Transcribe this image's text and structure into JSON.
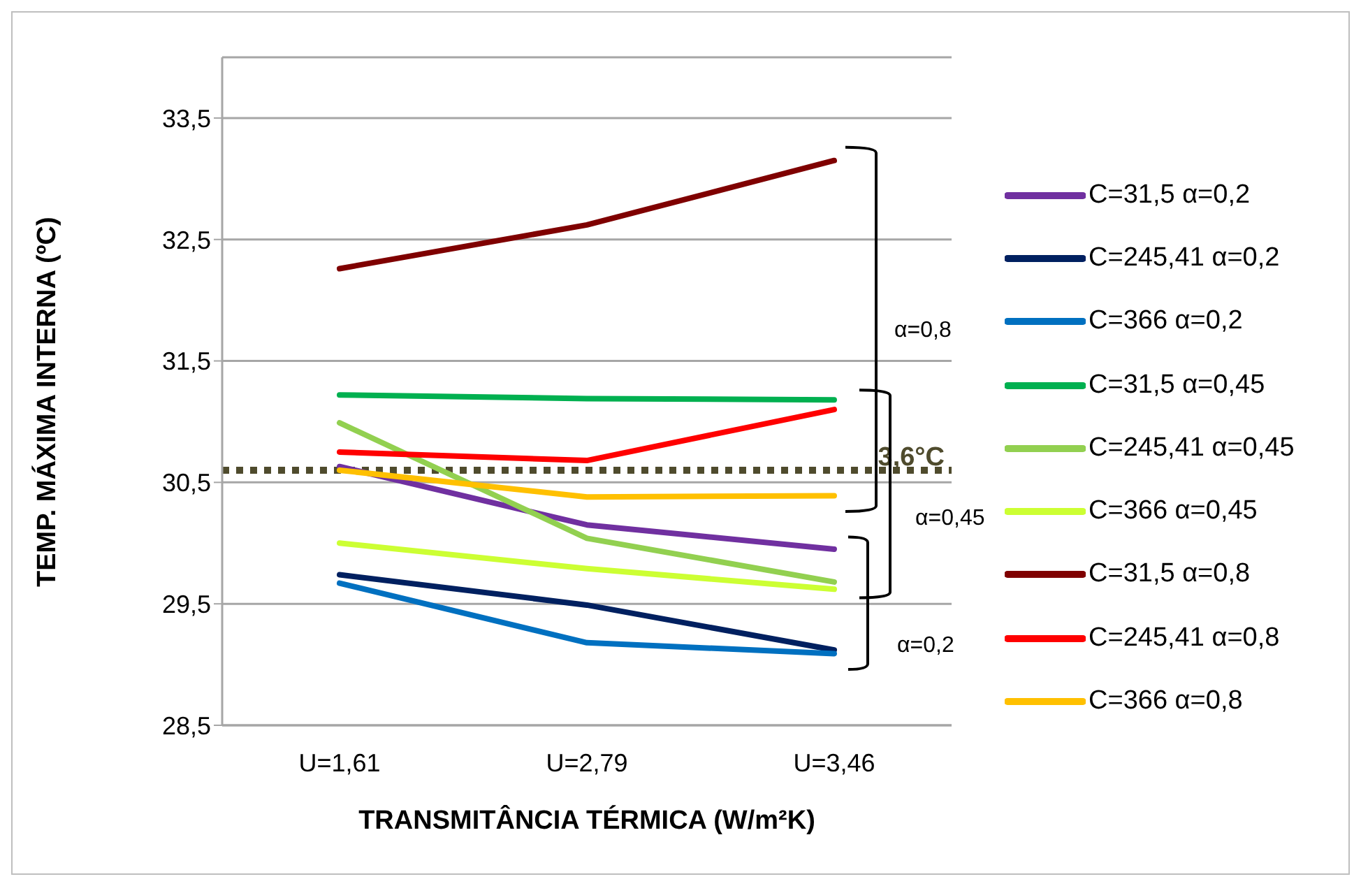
{
  "chart_data": {
    "type": "line",
    "xlabel": "TRANSMITÂNCIA TÉRMICA (W/m²K)",
    "ylabel": "TEMP. MÁXIMA INTERNA (ºC)",
    "categories": [
      "U=1,61",
      "U=2,79",
      "U=3,46"
    ],
    "ylim": [
      28.5,
      34
    ],
    "yticks": [
      {
        "value": 28.5,
        "label": "28,5"
      },
      {
        "value": 29.5,
        "label": "29,5"
      },
      {
        "value": 30.5,
        "label": "30,5"
      },
      {
        "value": 31.5,
        "label": "31,5"
      },
      {
        "value": 32.5,
        "label": "32,5"
      },
      {
        "value": 33.5,
        "label": "33,5"
      }
    ],
    "grid": "y",
    "legend": "right",
    "line_style": "solid",
    "series": [
      {
        "name": "C=31,5 α=0,2",
        "color": "#7030a0",
        "values": [
          30.63,
          30.15,
          29.95
        ]
      },
      {
        "name": "C=245,41 α=0,2",
        "color": "#002060",
        "values": [
          29.74,
          29.49,
          29.12
        ]
      },
      {
        "name": "C=366 α=0,2",
        "color": "#0070c0",
        "values": [
          29.67,
          29.18,
          29.09
        ]
      },
      {
        "name": "C=31,5 α=0,45",
        "color": "#00b050",
        "values": [
          31.22,
          31.19,
          31.18
        ]
      },
      {
        "name": "C=245,41 α=0,45",
        "color": "#92d050",
        "values": [
          30.99,
          30.04,
          29.68
        ]
      },
      {
        "name": "C=366 α=0,45",
        "color": "#ccff33",
        "values": [
          30.0,
          29.79,
          29.62
        ]
      },
      {
        "name": "C=31,5 α=0,8",
        "color": "#7f0000",
        "values": [
          32.26,
          32.62,
          33.15
        ]
      },
      {
        "name": "C=245,41 α=0,8",
        "color": "#ff0000",
        "values": [
          30.75,
          30.68,
          31.1
        ]
      },
      {
        "name": "C=366 α=0,8",
        "color": "#ffc000",
        "values": [
          30.6,
          30.38,
          30.39
        ]
      }
    ],
    "ref_lines": [
      {
        "axis": "y",
        "value": 30.6,
        "label": "3,6°C",
        "color": "#4f4b2d",
        "line_style": "dotted"
      }
    ],
    "annotations": [
      "α=0,8",
      "α=0,45",
      "α=0,2"
    ]
  }
}
